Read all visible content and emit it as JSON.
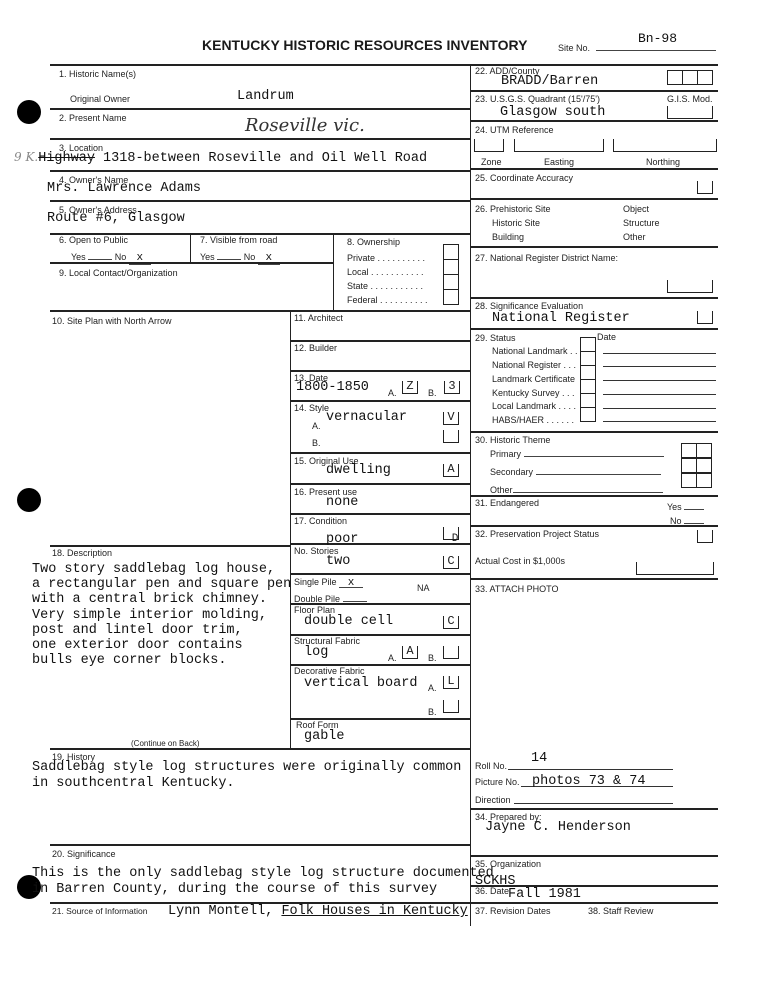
{
  "header": {
    "title": "KENTUCKY HISTORIC RESOURCES INVENTORY",
    "site_no_label": "Site No.",
    "site_no": "Bn-98"
  },
  "f1": {
    "label": "1. Historic Name(s)",
    "original_owner_label": "Original Owner",
    "original_owner": "Landrum"
  },
  "f2": {
    "label": "2. Present Name",
    "value": "Roseville vic."
  },
  "f3": {
    "label": "3. Location",
    "margin_note": "9 K.",
    "struck": "Highway",
    "value": " 1318-between Roseville and Oil Well Road"
  },
  "f4": {
    "label": "4. Owner's Name",
    "value": "Mrs. Lawrence Adams"
  },
  "f5": {
    "label": "5. Owner's Address",
    "value": "Route #6, Glasgow"
  },
  "f6": {
    "label": "6. Open to Public",
    "yes": "Yes",
    "no": "No",
    "mark": "x"
  },
  "f7": {
    "label": "7. Visible from road",
    "yes": "Yes",
    "no": "No",
    "mark": "x"
  },
  "f8": {
    "label": "8. Ownership",
    "options": [
      "Private . . . . . . . . . .",
      "Local . . . . . . . . . . .",
      "State . . . . . . . . . . .",
      "Federal . . . . . . . . . ."
    ]
  },
  "f9": {
    "label": "9. Local Contact/Organization"
  },
  "f10": {
    "label": "10. Site Plan with North Arrow"
  },
  "f11": {
    "label": "11. Architect"
  },
  "f12": {
    "label": "12. Builder"
  },
  "f13": {
    "label": "13. Date",
    "value": "1800-1850",
    "a_label": "A.",
    "a": "Z",
    "b_label": "B.",
    "b": "3"
  },
  "f14": {
    "label": "14. Style",
    "a_label": "A.",
    "a": "vernacular",
    "a_code": "V",
    "b_label": "B."
  },
  "f15": {
    "label": "15. Original Use",
    "value": "dwelling",
    "code": "A"
  },
  "f16": {
    "label": "16. Present use",
    "value": "none"
  },
  "f17": {
    "label": "17. Condition",
    "value": "poor",
    "code": "D"
  },
  "stories": {
    "label": "No. Stories",
    "value": "two",
    "code": "C"
  },
  "pile": {
    "single_label": "Single Pile",
    "single_mark": "x",
    "double_label": "Double Pile",
    "na_label": "NA"
  },
  "floor_plan": {
    "label": "Floor Plan",
    "value": "double cell",
    "code": "C"
  },
  "structural": {
    "label": "Structural Fabric",
    "value": "log",
    "a_label": "A.",
    "a": "A",
    "b_label": "B."
  },
  "decorative": {
    "label": "Decorative Fabric",
    "value": "vertical board",
    "a_label": "A.",
    "a": "L",
    "b_label": "B."
  },
  "roof": {
    "label": "Roof Form",
    "value": "gable"
  },
  "f18": {
    "label": "18. Description",
    "lines": [
      "Two story saddlebag log house,",
      "a rectangular pen and square pen",
      "with a central brick chimney.",
      "Very simple interior molding,",
      "post and lintel door trim,",
      "one exterior door contains",
      "bulls eye corner blocks."
    ],
    "continue": "(Continue on Back)"
  },
  "f19": {
    "label": "19. History",
    "lines": [
      "Saddlebag style log structures were originally common",
      "in southcentral Kentucky."
    ]
  },
  "f20": {
    "label": "20. Significance",
    "lines": [
      "This is the only saddlebag style log structure documented",
      "in Barren County, during the course of this survey"
    ]
  },
  "f21": {
    "label": "21. Source of Information",
    "author": "Lynn Montell,",
    "book": "Folk Houses in Kentucky"
  },
  "f22": {
    "label": "22. ADD/County",
    "value": "BRADD/Barren"
  },
  "f23": {
    "label": "23. U.S.G.S. Quadrant (15'/75')",
    "value": "Glasgow south",
    "gis_label": "G.I.S. Mod."
  },
  "f24": {
    "label": "24. UTM Reference",
    "zone": "Zone",
    "easting": "Easting",
    "northing": "Northing"
  },
  "f25": {
    "label": "25. Coordinate Accuracy"
  },
  "f26": {
    "options": [
      "26. Prehistoric Site",
      "Historic Site",
      "Building"
    ],
    "options2": [
      "Object",
      "Structure",
      "Other"
    ]
  },
  "f27": {
    "label": "27. National Register District Name:"
  },
  "f28": {
    "label": "28. Significance Evaluation",
    "value": "National Register"
  },
  "f29": {
    "label": "29. Status",
    "date_label": "Date",
    "items": [
      "National Landmark . .",
      "National Register . . .",
      "Landmark Certificate",
      "Kentucky Survey . . .",
      "Local Landmark . . . .",
      "HABS/HAER . . . . . ."
    ]
  },
  "f30": {
    "label": "30. Historic Theme",
    "primary": "Primary",
    "secondary": "Secondary",
    "other": "Other"
  },
  "f31": {
    "label": "31. Endangered",
    "yes": "Yes",
    "no": "No"
  },
  "f32": {
    "label": "32. Preservation Project Status",
    "cost_label": "Actual Cost in $1,000s"
  },
  "f33": {
    "label": "33. ATTACH PHOTO",
    "roll_label": "Roll No.",
    "roll": "14",
    "picture_label": "Picture No.",
    "picture": "photos 73 & 74",
    "direction_label": "Direction"
  },
  "f34": {
    "label": "34. Prepared by:",
    "value": "Jayne C. Henderson"
  },
  "f35": {
    "label": "35. Organization",
    "value": "SCKHS"
  },
  "f36": {
    "label": "36. Date",
    "value": "Fall 1981"
  },
  "f37": {
    "label": "37. Revision Dates"
  },
  "f38": {
    "label": "38. Staff Review"
  }
}
